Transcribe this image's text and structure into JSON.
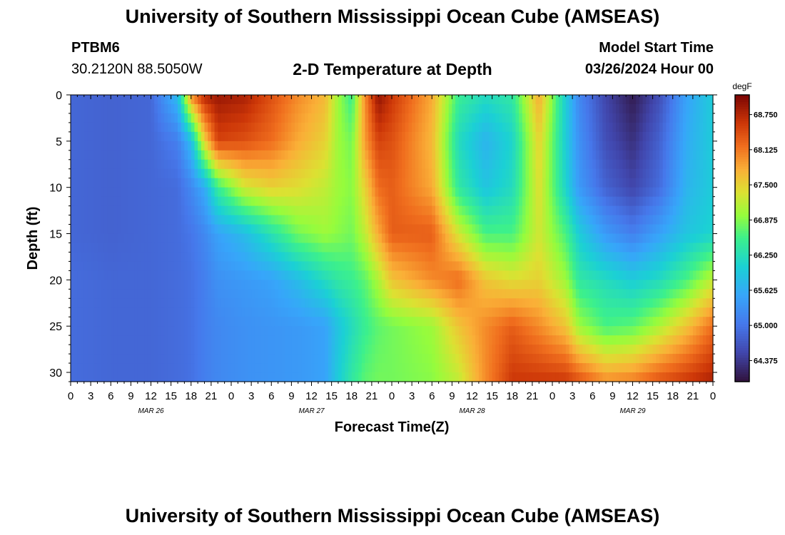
{
  "header": {
    "title": "University of Southern Mississippi Ocean Cube (AMSEAS)",
    "station_id": "PTBM6",
    "coordinates": "30.2120N  88.5050W",
    "subtitle": "2-D Temperature at Depth",
    "model_start_label": "Model Start Time",
    "model_start_value": "03/26/2024 Hour 00"
  },
  "footer": {
    "title": "University of Southern Mississippi Ocean Cube (AMSEAS)"
  },
  "chart_data": {
    "type": "heatmap",
    "title": "2-D Temperature at Depth",
    "xlabel": "Forecast Time(Z)",
    "ylabel": "Depth (ft)",
    "x_tick_labels": [
      "0",
      "3",
      "6",
      "9",
      "12",
      "15",
      "18",
      "21",
      "0",
      "3",
      "6",
      "9",
      "12",
      "15",
      "18",
      "21",
      "0",
      "3",
      "6",
      "9",
      "12",
      "15",
      "18",
      "21",
      "0",
      "3",
      "6",
      "9",
      "12",
      "15",
      "18",
      "21",
      "0"
    ],
    "x_date_labels": [
      "MAR 26",
      "MAR 27",
      "MAR 28",
      "MAR 29"
    ],
    "x_hours_range": [
      0,
      96
    ],
    "y_ticks": [
      0,
      5,
      10,
      15,
      20,
      25,
      30
    ],
    "y_range": [
      0,
      31
    ],
    "colorbar": {
      "unit": "degF",
      "range": [
        64.0,
        69.1
      ],
      "ticks": [
        64.375,
        65.0,
        65.625,
        66.25,
        66.875,
        67.5,
        68.125,
        68.75
      ],
      "tick_labels": [
        "64.375",
        "65.000",
        "65.625",
        "66.250",
        "66.875",
        "67.500",
        "68.125",
        "68.750"
      ]
    },
    "depth_levels_ft": [
      0,
      5,
      10,
      15,
      20,
      25,
      31
    ],
    "time_hours": [
      0,
      6,
      12,
      16,
      18,
      20,
      22,
      26,
      30,
      34,
      38,
      40,
      42,
      44,
      46,
      48,
      54,
      58,
      62,
      66,
      70,
      74,
      76,
      80,
      84,
      88,
      92,
      96
    ],
    "temperature_degF": [
      [
        64.85,
        64.8,
        64.85,
        65.8,
        68.0,
        68.75,
        68.9,
        68.8,
        68.4,
        68.0,
        67.7,
        67.0,
        66.5,
        68.0,
        68.95,
        68.6,
        67.8,
        66.5,
        66.2,
        66.4,
        67.8,
        66.0,
        65.2,
        64.5,
        64.1,
        64.6,
        65.5,
        66.0
      ],
      [
        64.85,
        64.8,
        64.85,
        65.1,
        65.8,
        67.5,
        68.5,
        68.4,
        68.2,
        67.8,
        67.5,
        67.0,
        66.8,
        67.9,
        68.5,
        68.4,
        67.7,
        66.2,
        65.7,
        66.1,
        67.5,
        66.0,
        65.3,
        64.6,
        64.3,
        64.8,
        65.6,
        66.0
      ],
      [
        64.85,
        64.8,
        64.85,
        64.9,
        65.2,
        65.6,
        66.5,
        67.3,
        67.5,
        67.4,
        67.2,
        67.0,
        66.9,
        67.5,
        68.2,
        68.3,
        67.8,
        66.4,
        65.9,
        66.2,
        67.4,
        66.1,
        65.4,
        64.8,
        64.5,
        64.9,
        65.7,
        66.0
      ],
      [
        64.85,
        64.8,
        64.85,
        64.9,
        65.0,
        65.2,
        65.5,
        65.8,
        66.3,
        66.8,
        67.0,
        66.9,
        66.8,
        67.2,
        67.8,
        68.3,
        68.3,
        67.3,
        66.6,
        66.6,
        67.3,
        66.6,
        66.0,
        65.4,
        65.1,
        65.5,
        65.9,
        66.1
      ],
      [
        64.9,
        64.85,
        64.85,
        64.9,
        64.95,
        65.1,
        65.3,
        65.4,
        65.5,
        65.8,
        66.2,
        66.4,
        66.5,
        66.7,
        67.1,
        67.6,
        68.0,
        68.2,
        67.6,
        67.4,
        67.5,
        67.0,
        66.4,
        66.2,
        66.0,
        66.2,
        66.6,
        67.2
      ],
      [
        64.9,
        64.85,
        64.85,
        64.9,
        64.95,
        65.1,
        65.2,
        65.3,
        65.35,
        65.4,
        65.5,
        65.9,
        66.2,
        66.5,
        66.7,
        66.8,
        67.0,
        67.6,
        68.0,
        68.3,
        68.0,
        67.6,
        67.0,
        66.6,
        66.7,
        67.1,
        67.6,
        68.2
      ],
      [
        64.9,
        64.85,
        64.85,
        64.9,
        64.95,
        65.1,
        65.2,
        65.3,
        65.35,
        65.4,
        65.5,
        66.0,
        66.4,
        66.7,
        66.8,
        66.8,
        66.9,
        67.2,
        68.0,
        68.6,
        68.6,
        68.6,
        68.4,
        68.0,
        68.1,
        68.4,
        68.6,
        68.8
      ]
    ]
  }
}
